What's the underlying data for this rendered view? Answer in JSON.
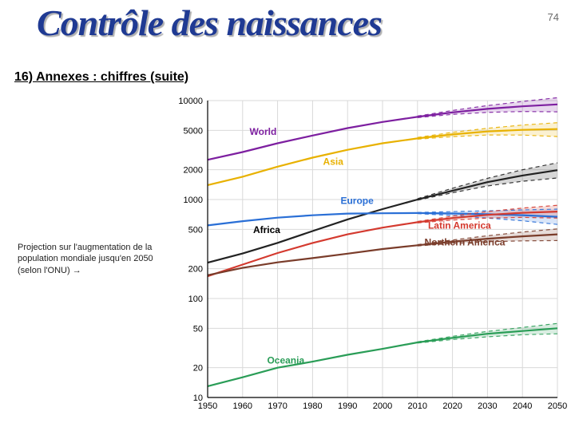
{
  "page_number": "74",
  "title": "Contrôle des naissances",
  "section_header": "16) Annexes : chiffres (suite)",
  "caption": "Projection sur l'augmentation de la population mondiale jusqu'en 2050 (selon l'ONU) →",
  "chart": {
    "type": "line",
    "x_axis": {
      "ticks": [
        1950,
        1960,
        1970,
        1980,
        1990,
        2000,
        2010,
        2020,
        2030,
        2040,
        2050
      ]
    },
    "y_axis": {
      "scale": "log",
      "ticks": [
        10,
        20,
        50,
        100,
        200,
        500,
        1000,
        2000,
        5000,
        10000
      ],
      "labels": [
        "10",
        "20",
        "50",
        "100",
        "200",
        "500",
        "1000",
        "2000",
        "5000",
        "10000"
      ]
    },
    "grid_color": "#d9d9d9",
    "background_color": "#ffffff",
    "axis_color": "#000000",
    "proj_start_year": 2005,
    "series": [
      {
        "name": "World",
        "label": "World",
        "color": "#7d1fa0",
        "label_color": "#7d1fa0",
        "label_x": 1962,
        "label_y": 4500,
        "years": [
          1950,
          1960,
          1970,
          1980,
          1990,
          2000,
          2010,
          2020,
          2030,
          2040,
          2050
        ],
        "values": [
          2520,
          3020,
          3700,
          4430,
          5270,
          6080,
          6850,
          7600,
          8250,
          8750,
          9150
        ],
        "band_hi": [
          2520,
          3020,
          3700,
          4430,
          5270,
          6080,
          6980,
          7950,
          8900,
          9800,
          10700
        ],
        "band_lo": [
          2520,
          3020,
          3700,
          4430,
          5270,
          6080,
          6720,
          7250,
          7600,
          7750,
          7700
        ]
      },
      {
        "name": "Asia",
        "label": "Asia",
        "color": "#e8b100",
        "label_color": "#e8b100",
        "label_x": 1983,
        "label_y": 2250,
        "years": [
          1950,
          1960,
          1970,
          1980,
          1990,
          2000,
          2010,
          2020,
          2030,
          2040,
          2050
        ],
        "values": [
          1400,
          1700,
          2150,
          2650,
          3180,
          3700,
          4150,
          4550,
          4870,
          5060,
          5150
        ],
        "band_hi": [
          1400,
          1700,
          2150,
          2650,
          3180,
          3700,
          4240,
          4780,
          5250,
          5650,
          5980
        ],
        "band_lo": [
          1400,
          1700,
          2150,
          2650,
          3180,
          3700,
          4070,
          4320,
          4490,
          4480,
          4330
        ]
      },
      {
        "name": "Africa",
        "label": "Africa",
        "color": "#222222",
        "label_color": "#000000",
        "label_x": 1963,
        "label_y": 460,
        "years": [
          1950,
          1960,
          1970,
          1980,
          1990,
          2000,
          2010,
          2020,
          2030,
          2040,
          2050
        ],
        "values": [
          230,
          285,
          365,
          480,
          630,
          800,
          1000,
          1230,
          1500,
          1750,
          1980
        ],
        "band_hi": [
          230,
          285,
          365,
          480,
          630,
          800,
          1020,
          1300,
          1640,
          2000,
          2350
        ],
        "band_lo": [
          230,
          285,
          365,
          480,
          630,
          800,
          985,
          1170,
          1370,
          1530,
          1650
        ]
      },
      {
        "name": "Europe",
        "label": "Europe",
        "color": "#2a6fd6",
        "label_color": "#2a6fd6",
        "label_x": 1988,
        "label_y": 900,
        "years": [
          1950,
          1960,
          1970,
          1980,
          1990,
          2000,
          2010,
          2020,
          2030,
          2040,
          2050
        ],
        "values": [
          548,
          605,
          656,
          694,
          721,
          727,
          730,
          722,
          710,
          695,
          670
        ],
        "band_hi": [
          548,
          605,
          656,
          694,
          721,
          727,
          740,
          755,
          770,
          785,
          800
        ],
        "band_lo": [
          548,
          605,
          656,
          694,
          721,
          727,
          720,
          690,
          650,
          610,
          560
        ]
      },
      {
        "name": "LatinAmerica",
        "label": "Latin America",
        "color": "#d43a2f",
        "label_color": "#d43a2f",
        "label_x": 2013,
        "label_y": 510,
        "years": [
          1950,
          1960,
          1970,
          1980,
          1990,
          2000,
          2010,
          2020,
          2030,
          2040,
          2050
        ],
        "values": [
          168,
          220,
          288,
          364,
          445,
          520,
          590,
          650,
          700,
          735,
          755
        ],
        "band_hi": [
          168,
          220,
          288,
          364,
          445,
          520,
          600,
          680,
          755,
          820,
          875
        ],
        "band_lo": [
          168,
          220,
          288,
          364,
          445,
          520,
          580,
          620,
          650,
          660,
          650
        ]
      },
      {
        "name": "NorthernAmerica",
        "label": "Northern America",
        "color": "#7a3c2a",
        "label_color": "#7a3c2a",
        "label_x": 2012,
        "label_y": 345,
        "years": [
          1950,
          1960,
          1970,
          1980,
          1990,
          2000,
          2010,
          2020,
          2030,
          2040,
          2050
        ],
        "values": [
          172,
          204,
          232,
          256,
          284,
          316,
          345,
          375,
          402,
          425,
          445
        ],
        "band_hi": [
          172,
          204,
          232,
          256,
          284,
          316,
          350,
          390,
          430,
          470,
          505
        ],
        "band_lo": [
          172,
          204,
          232,
          256,
          284,
          316,
          340,
          360,
          375,
          382,
          385
        ]
      },
      {
        "name": "Oceania",
        "label": "Oceania",
        "color": "#2a9d57",
        "label_color": "#2a9d57",
        "label_x": 1967,
        "label_y": 22,
        "years": [
          1950,
          1960,
          1970,
          1980,
          1990,
          2000,
          2010,
          2020,
          2030,
          2040,
          2050
        ],
        "values": [
          13,
          16,
          20,
          23,
          27,
          31,
          36,
          40,
          44,
          47,
          50
        ],
        "band_hi": [
          13,
          16,
          20,
          23,
          27,
          31,
          36.5,
          41.5,
          46.5,
          51,
          56
        ],
        "band_lo": [
          13,
          16,
          20,
          23,
          27,
          31,
          35.5,
          38.5,
          41,
          43,
          44
        ]
      }
    ]
  }
}
